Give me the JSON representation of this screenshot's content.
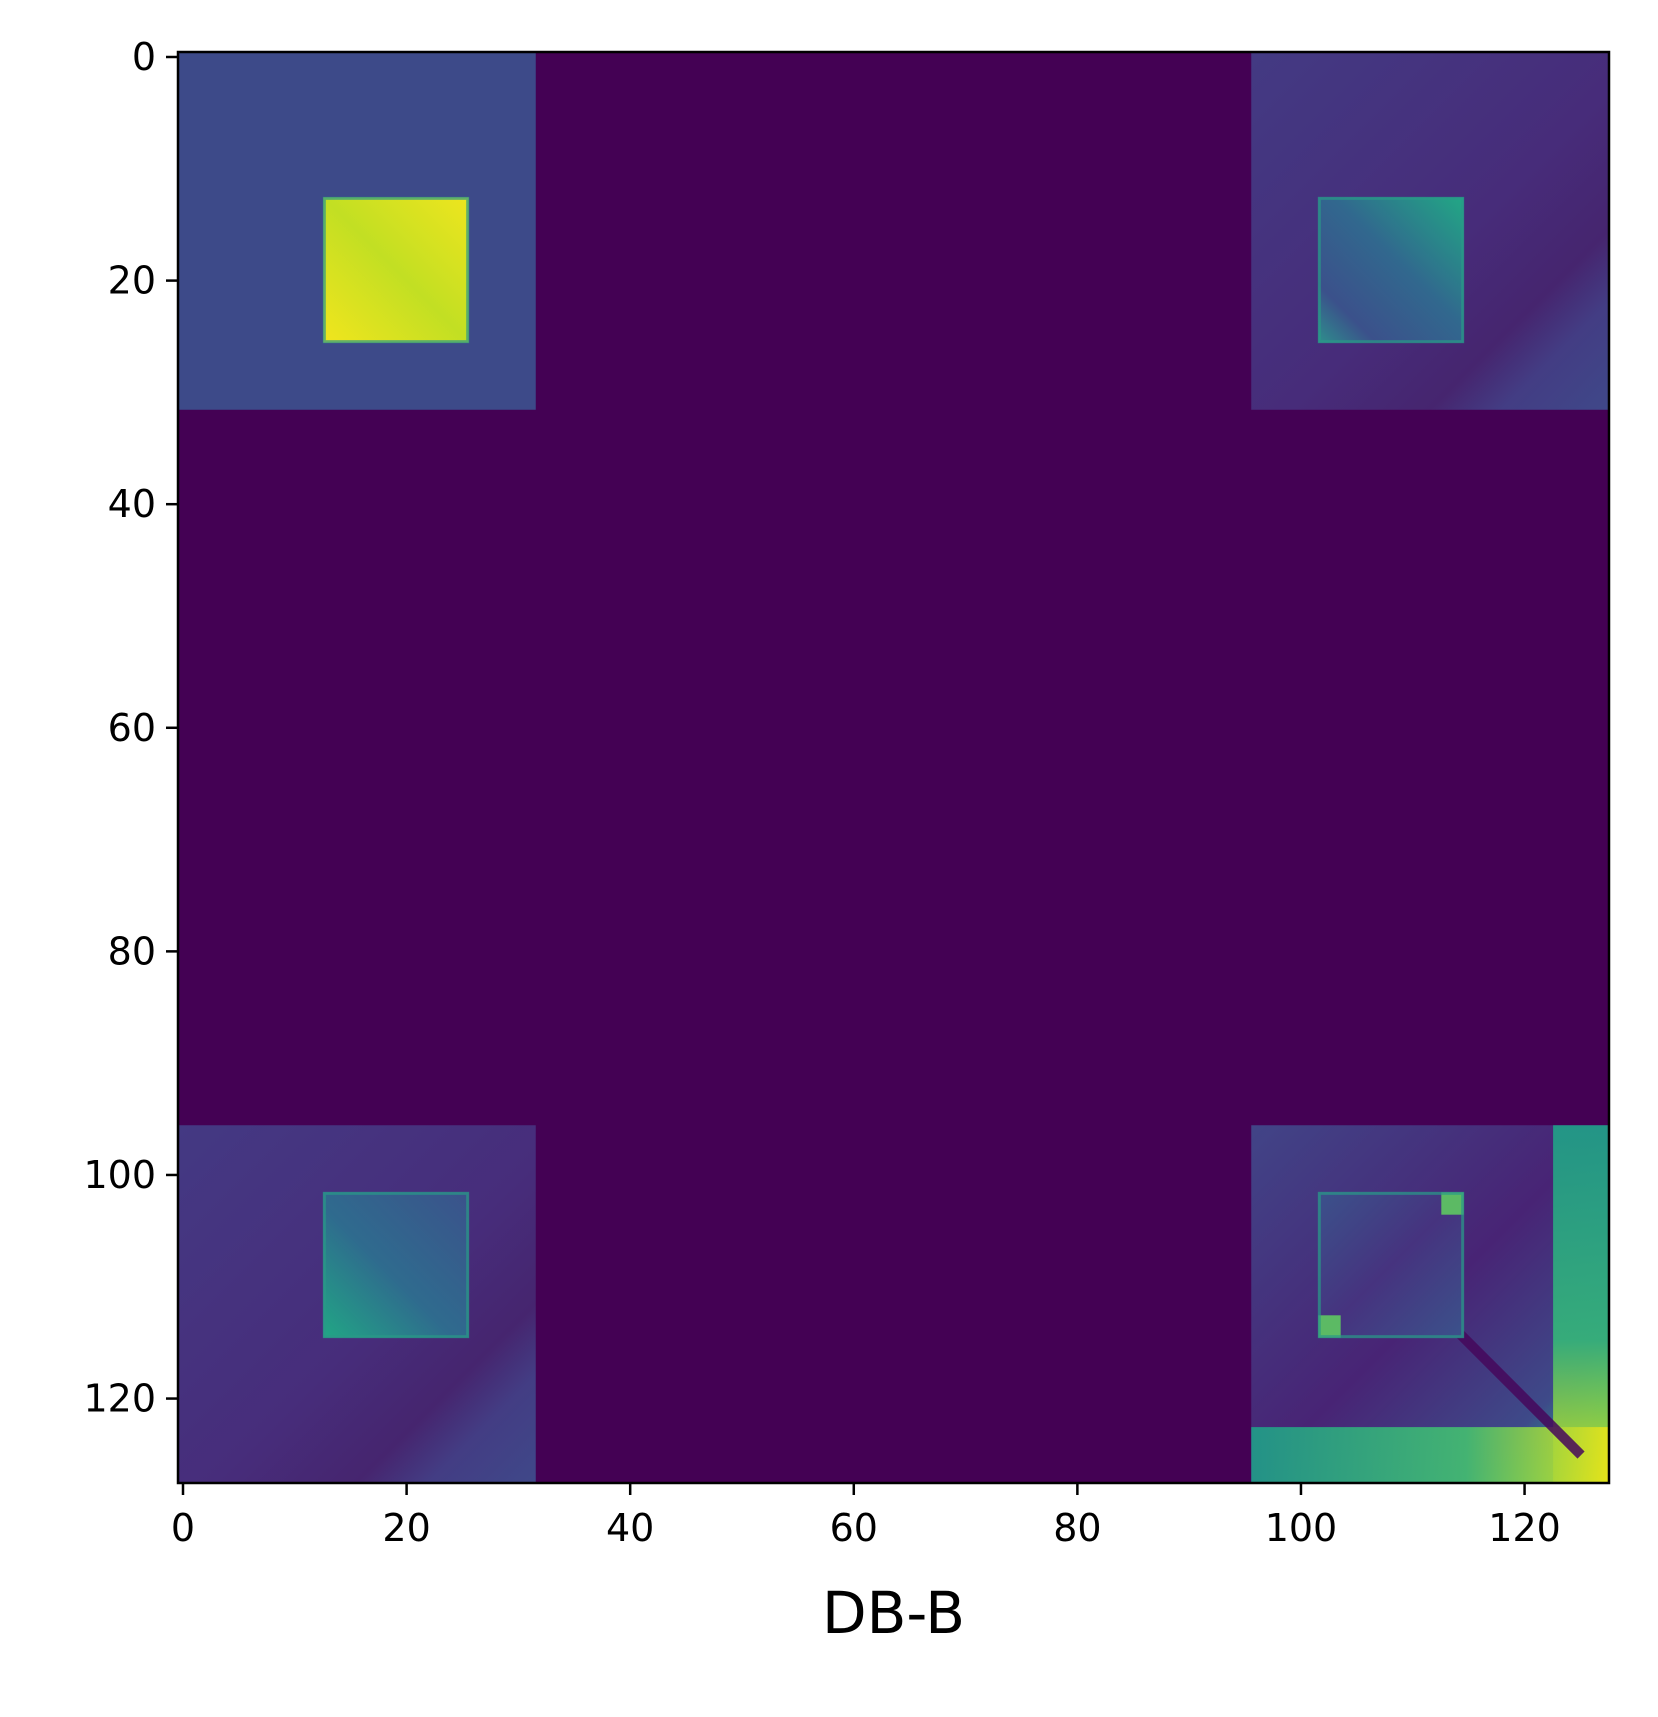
{
  "chart_data": {
    "type": "heatmap",
    "xlabel": "DB-B",
    "ylabel": "",
    "title": "",
    "colormap": "viridis",
    "colors": {
      "low": "#440154",
      "mid_blue": "#3b4a8a",
      "teal": "#26a08a",
      "yellow": "#f0e51c"
    },
    "grid": false,
    "x_range": [
      0,
      128
    ],
    "y_range": [
      0,
      128
    ],
    "y_inverted": true,
    "x_ticks": [
      0,
      20,
      40,
      60,
      80,
      100,
      120
    ],
    "y_ticks": [
      0,
      20,
      40,
      60,
      80,
      100,
      120
    ],
    "value_range": [
      0,
      1
    ],
    "regions": [
      {
        "name": "top-left-block",
        "x": [
          0,
          32
        ],
        "y": [
          0,
          32
        ],
        "value": 0.24
      },
      {
        "name": "top-left-core",
        "x": [
          13,
          26
        ],
        "y": [
          13,
          26
        ],
        "value": 0.92,
        "variation": "bright-yellow"
      },
      {
        "name": "top-right-block",
        "x": [
          96,
          128
        ],
        "y": [
          0,
          32
        ],
        "value": 0.2,
        "variation": "darker-diagonal-toward-bottom-right"
      },
      {
        "name": "top-right-core",
        "x": [
          102,
          115
        ],
        "y": [
          13,
          26
        ],
        "value": 0.4,
        "variation": "teal-top-right-to-blue"
      },
      {
        "name": "bottom-left-block",
        "x": [
          0,
          32
        ],
        "y": [
          96,
          128
        ],
        "value": 0.2,
        "variation": "darker-diagonal-toward-bottom-right"
      },
      {
        "name": "bottom-left-core",
        "x": [
          13,
          26
        ],
        "y": [
          102,
          115
        ],
        "value": 0.4,
        "variation": "teal-bottom-left-to-blue"
      },
      {
        "name": "bottom-right-block",
        "x": [
          96,
          128
        ],
        "y": [
          96,
          128
        ],
        "value": 0.3,
        "variation": "green-edges-dark-diagonal"
      },
      {
        "name": "bottom-right-core",
        "x": [
          102,
          115
        ],
        "y": [
          102,
          115
        ],
        "value": 0.3,
        "variation": "bright-corners"
      }
    ]
  }
}
